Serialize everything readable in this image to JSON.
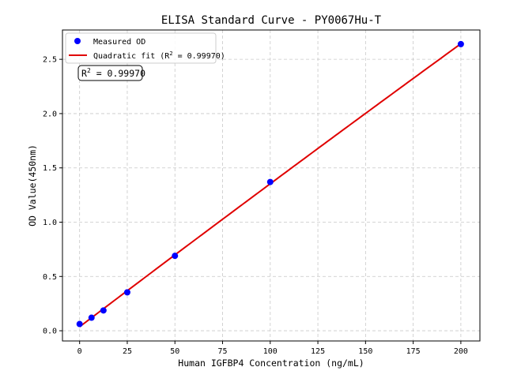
{
  "chart_data": {
    "type": "scatter",
    "title": "ELISA Standard Curve - PY0067Hu-T",
    "xlabel": "Human IGFBP4 Concentration (ng/mL)",
    "ylabel": "OD Value(450nm)",
    "xlim": [
      -9,
      210
    ],
    "ylim": [
      -0.094,
      2.77
    ],
    "xticks": [
      0,
      25,
      50,
      75,
      100,
      125,
      150,
      175,
      200
    ],
    "yticks": [
      0.0,
      0.5,
      1.0,
      1.5,
      2.0,
      2.5
    ],
    "ytick_labels": [
      "0.0",
      "0.5",
      "1.0",
      "1.5",
      "2.0",
      "2.5"
    ],
    "grid": true,
    "legend_placement": "top-left",
    "series": [
      {
        "name": "Measured OD",
        "kind": "scatter",
        "color": "#0000ff",
        "x": [
          0,
          6.25,
          12.5,
          25,
          50,
          100,
          200
        ],
        "y": [
          0.062,
          0.12,
          0.187,
          0.354,
          0.69,
          1.37,
          2.64
        ]
      },
      {
        "name": "Quadratic fit",
        "kind": "line",
        "color": "#e00000"
      }
    ],
    "legend": {
      "scatter_label": "Measured OD",
      "fit_label_prefix": "Quadratic fit (R",
      "fit_label_suffix": " = 0.99970)"
    },
    "annotation": {
      "prefix": "R",
      "value": " = 0.99970"
    }
  }
}
